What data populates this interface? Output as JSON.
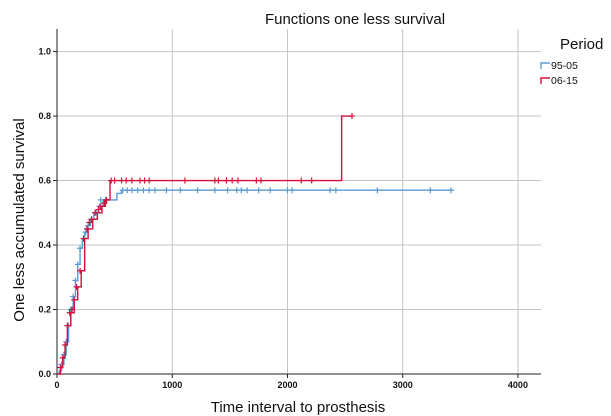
{
  "chart_data": {
    "type": "line",
    "step": true,
    "title": "Functions one less survival",
    "xlabel": "Time interval to prosthesis",
    "ylabel": "One less accumulated survival",
    "xlim": [
      0,
      4200
    ],
    "ylim": [
      0,
      1.07
    ],
    "xticks": [
      0,
      1000,
      2000,
      3000,
      4000
    ],
    "yticks": [
      0.0,
      0.2,
      0.4,
      0.6,
      0.8,
      1.0
    ],
    "xtick_labels": [
      "0",
      "1000",
      "2000",
      "3000",
      "4000"
    ],
    "ytick_labels": [
      "0.0",
      "0.2",
      "0.4",
      "0.6",
      "0.8",
      "1.0"
    ],
    "grid": true,
    "legend": {
      "title": "Period",
      "position": "top-right"
    },
    "series": [
      {
        "name": "95-05",
        "color": "#5b9bd5",
        "steps": [
          [
            0,
            0.0
          ],
          [
            20,
            0.01
          ],
          [
            40,
            0.03
          ],
          [
            60,
            0.06
          ],
          [
            80,
            0.1
          ],
          [
            100,
            0.15
          ],
          [
            120,
            0.2
          ],
          [
            140,
            0.24
          ],
          [
            160,
            0.29
          ],
          [
            180,
            0.34
          ],
          [
            200,
            0.39
          ],
          [
            220,
            0.42
          ],
          [
            240,
            0.44
          ],
          [
            260,
            0.46
          ],
          [
            290,
            0.48
          ],
          [
            320,
            0.5
          ],
          [
            360,
            0.52
          ],
          [
            400,
            0.54
          ],
          [
            520,
            0.56
          ],
          [
            560,
            0.57
          ],
          [
            3420,
            0.57
          ]
        ],
        "censored": [
          [
            40,
            0.03
          ],
          [
            60,
            0.06
          ],
          [
            80,
            0.1
          ],
          [
            100,
            0.15
          ],
          [
            120,
            0.2
          ],
          [
            140,
            0.24
          ],
          [
            160,
            0.29
          ],
          [
            180,
            0.34
          ],
          [
            200,
            0.39
          ],
          [
            230,
            0.42
          ],
          [
            250,
            0.44
          ],
          [
            270,
            0.46
          ],
          [
            300,
            0.48
          ],
          [
            340,
            0.5
          ],
          [
            370,
            0.52
          ],
          [
            380,
            0.54
          ],
          [
            420,
            0.54
          ],
          [
            570,
            0.57
          ],
          [
            610,
            0.57
          ],
          [
            650,
            0.57
          ],
          [
            700,
            0.57
          ],
          [
            750,
            0.57
          ],
          [
            800,
            0.57
          ],
          [
            850,
            0.57
          ],
          [
            950,
            0.57
          ],
          [
            1070,
            0.57
          ],
          [
            1220,
            0.57
          ],
          [
            1370,
            0.57
          ],
          [
            1480,
            0.57
          ],
          [
            1560,
            0.57
          ],
          [
            1600,
            0.57
          ],
          [
            1650,
            0.57
          ],
          [
            1750,
            0.57
          ],
          [
            1850,
            0.57
          ],
          [
            2000,
            0.57
          ],
          [
            2040,
            0.57
          ],
          [
            2370,
            0.57
          ],
          [
            2420,
            0.57
          ],
          [
            2780,
            0.57
          ],
          [
            3240,
            0.57
          ],
          [
            3420,
            0.57
          ]
        ]
      },
      {
        "name": "06-15",
        "color": "#d0103a",
        "steps": [
          [
            0,
            0.0
          ],
          [
            30,
            0.02
          ],
          [
            50,
            0.05
          ],
          [
            70,
            0.09
          ],
          [
            90,
            0.15
          ],
          [
            120,
            0.19
          ],
          [
            150,
            0.23
          ],
          [
            180,
            0.27
          ],
          [
            210,
            0.32
          ],
          [
            240,
            0.42
          ],
          [
            270,
            0.45
          ],
          [
            310,
            0.48
          ],
          [
            350,
            0.5
          ],
          [
            390,
            0.52
          ],
          [
            420,
            0.54
          ],
          [
            460,
            0.6
          ],
          [
            2470,
            0.6
          ],
          [
            2470,
            0.8
          ],
          [
            2560,
            0.8
          ]
        ],
        "censored": [
          [
            30,
            0.02
          ],
          [
            50,
            0.05
          ],
          [
            70,
            0.09
          ],
          [
            90,
            0.15
          ],
          [
            110,
            0.19
          ],
          [
            130,
            0.2
          ],
          [
            150,
            0.23
          ],
          [
            170,
            0.27
          ],
          [
            200,
            0.32
          ],
          [
            230,
            0.42
          ],
          [
            260,
            0.45
          ],
          [
            280,
            0.47
          ],
          [
            300,
            0.48
          ],
          [
            330,
            0.5
          ],
          [
            360,
            0.51
          ],
          [
            380,
            0.52
          ],
          [
            410,
            0.53
          ],
          [
            430,
            0.54
          ],
          [
            470,
            0.6
          ],
          [
            500,
            0.6
          ],
          [
            560,
            0.6
          ],
          [
            600,
            0.6
          ],
          [
            650,
            0.6
          ],
          [
            720,
            0.6
          ],
          [
            760,
            0.6
          ],
          [
            800,
            0.6
          ],
          [
            1110,
            0.6
          ],
          [
            1370,
            0.6
          ],
          [
            1400,
            0.6
          ],
          [
            1470,
            0.6
          ],
          [
            1520,
            0.6
          ],
          [
            1570,
            0.6
          ],
          [
            1730,
            0.6
          ],
          [
            1770,
            0.6
          ],
          [
            2120,
            0.6
          ],
          [
            2210,
            0.6
          ],
          [
            2560,
            0.8
          ]
        ]
      }
    ]
  }
}
